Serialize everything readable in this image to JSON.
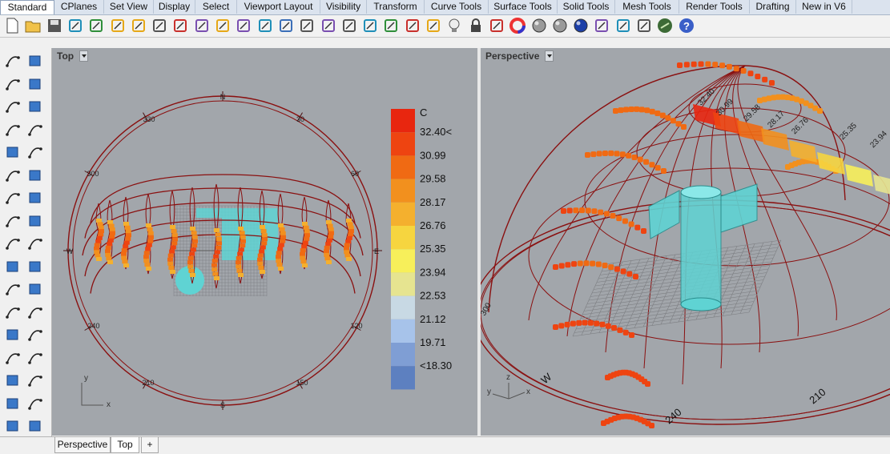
{
  "tabs": [
    "Standard",
    "CPlanes",
    "Set View",
    "Display",
    "Select",
    "Viewport Layout",
    "Visibility",
    "Transform",
    "Curve Tools",
    "Surface Tools",
    "Solid Tools",
    "Mesh Tools",
    "Render Tools",
    "Drafting",
    "New in V6"
  ],
  "active_tab": "Standard",
  "toolbar_icons": [
    "new-file-icon",
    "open-folder-icon",
    "save-icon",
    "print-icon",
    "import-icon",
    "cut-icon",
    "copy-icon",
    "paste-icon",
    "undo-icon",
    "pan-hand-icon",
    "rotate-view-icon",
    "zoom-icon",
    "zoom-window-icon",
    "zoom-extents-icon",
    "zoom-selected-icon",
    "rotate-camera-icon",
    "four-viewports-icon",
    "car-icon",
    "construction-plane-icon",
    "rotate-icon",
    "object-snap-icon",
    "lightbulb-icon",
    "lock-icon",
    "layer-icon",
    "color-wheel-icon",
    "shaded-sphere-icon",
    "rendered-sphere-icon",
    "blue-sphere-icon",
    "pen-icon",
    "gear-icon",
    "history-icon",
    "grasshopper-icon",
    "help-icon"
  ],
  "left_tool_icons": [
    "select-arrow-icon",
    "point-icon",
    "polyline-icon",
    "curve-icon",
    "circle-icon",
    "ellipse-icon",
    "arc-icon",
    "rectangle-icon",
    "polygon-icon",
    "fillet-icon",
    "surface-icon",
    "sweep-icon",
    "box-icon",
    "sphere-icon",
    "cylinder-icon",
    "mesh-icon",
    "gear-transform-icon",
    "boolean-icon",
    "move-icon",
    "copy-transform-icon",
    "dots-icon",
    "array-icon",
    "curve-edit-icon",
    "offset-icon",
    "text-icon",
    "dimension-icon",
    "group-icon",
    "block-icon",
    "solid-icon",
    "layout-icon",
    "grid-icon",
    "properties-icon",
    "analyze-icon",
    "more-icon"
  ],
  "viewport_top": {
    "title": "Top",
    "compass": [
      "N",
      "30",
      "60",
      "E",
      "120",
      "150",
      "S",
      "210",
      "240",
      "W",
      "300",
      "330"
    ],
    "axis_x": "x",
    "axis_y": "y"
  },
  "viewport_perspective": {
    "title": "Perspective",
    "labels": [
      "32.40",
      "30.99",
      "29.58",
      "28.17",
      "26.76",
      "25.35",
      "23.94",
      "W",
      "240",
      "210",
      "300"
    ],
    "axis_x": "x",
    "axis_y": "y",
    "axis_z": "z"
  },
  "legend": {
    "unit": "C",
    "labels": [
      "32.40<",
      "30.99",
      "29.58",
      "28.17",
      "26.76",
      "25.35",
      "23.94",
      "22.53",
      "21.12",
      "19.71",
      "<18.30"
    ],
    "colors": [
      "#e8260f",
      "#ee4411",
      "#f06a13",
      "#f2901e",
      "#f4b02e",
      "#f6d53f",
      "#f7ef5a",
      "#e6e490",
      "#c8d9e4",
      "#a7c3ea",
      "#7f9ed4",
      "#5d80c0"
    ]
  },
  "bottom_tabs": [
    "Perspective",
    "Top"
  ],
  "active_bottom_tab": "Top",
  "add_tab_symbol": "+",
  "colors": {
    "viewport_bg": "#a2a6ab",
    "wire": "#8a1010",
    "building": "#5fd3d3",
    "grid": "#7d7f83"
  }
}
